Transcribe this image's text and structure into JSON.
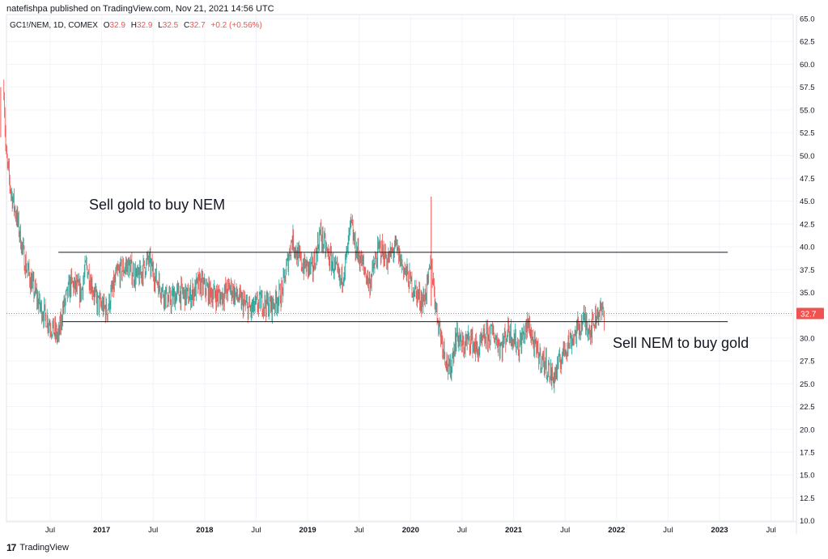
{
  "header": {
    "published": "natefishpa published on TradingView.com, Nov 21, 2021 14:56 UTC"
  },
  "legend": {
    "symbol": "GC1!/NEM, 1D, COMEX",
    "o_label": "O",
    "o_value": "32.9",
    "h_label": "H",
    "h_value": "32.9",
    "l_label": "L",
    "l_value": "32.5",
    "c_label": "C",
    "c_value": "32.7",
    "change": "+0.2 (+0.56%)"
  },
  "footer": {
    "brand": "TradingView",
    "logo": "17"
  },
  "annotations": {
    "upper": "Sell gold to buy NEM",
    "lower": "Sell NEM to buy gold"
  },
  "colors": {
    "up": "#26a69a",
    "down": "#ef5350",
    "last_price": "#ef5350",
    "grid": "#f0f3fa",
    "axis": "#e0e3eb"
  },
  "chart_data": {
    "type": "candlestick",
    "ylim": [
      8.9,
      65.0
    ],
    "y_ticks": [
      "65.0",
      "62.5",
      "60.0",
      "57.5",
      "55.0",
      "52.5",
      "50.0",
      "47.5",
      "45.0",
      "42.5",
      "40.0",
      "37.5",
      "35.0",
      "32.5",
      "30.0",
      "27.5",
      "25.0",
      "22.5",
      "20.0",
      "17.5",
      "15.0",
      "12.5",
      "10.0"
    ],
    "x_ticks": [
      "Jul",
      "2017",
      "Jul",
      "2018",
      "Jul",
      "2019",
      "Jul",
      "2020",
      "Jul",
      "2021",
      "Jul",
      "2022",
      "Jul",
      "2023",
      "Jul"
    ],
    "x_tick_dates": [
      2016.5,
      2017.0,
      2017.5,
      2018.0,
      2018.5,
      2019.0,
      2019.5,
      2020.0,
      2020.5,
      2021.0,
      2021.5,
      2022.0,
      2022.5,
      2023.0,
      2023.5
    ],
    "last_price": "32.7",
    "series_path": [
      [
        2016.05,
        57.5
      ],
      [
        2016.07,
        50.0
      ],
      [
        2016.12,
        46.0
      ],
      [
        2016.18,
        43.0
      ],
      [
        2016.25,
        38.5
      ],
      [
        2016.32,
        36.0
      ],
      [
        2016.4,
        33.5
      ],
      [
        2016.5,
        31.5
      ],
      [
        2016.58,
        30.0
      ],
      [
        2016.62,
        33.0
      ],
      [
        2016.7,
        36.0
      ],
      [
        2016.8,
        35.0
      ],
      [
        2016.85,
        38.0
      ],
      [
        2016.95,
        34.0
      ],
      [
        2017.05,
        33.0
      ],
      [
        2017.15,
        37.0
      ],
      [
        2017.25,
        38.0
      ],
      [
        2017.35,
        36.5
      ],
      [
        2017.45,
        38.5
      ],
      [
        2017.55,
        36.0
      ],
      [
        2017.65,
        34.0
      ],
      [
        2017.75,
        35.0
      ],
      [
        2017.85,
        34.5
      ],
      [
        2017.95,
        36.0
      ],
      [
        2018.05,
        35.0
      ],
      [
        2018.15,
        34.5
      ],
      [
        2018.25,
        35.5
      ],
      [
        2018.35,
        34.0
      ],
      [
        2018.45,
        33.0
      ],
      [
        2018.55,
        34.0
      ],
      [
        2018.65,
        33.5
      ],
      [
        2018.75,
        35.0
      ],
      [
        2018.8,
        38.0
      ],
      [
        2018.85,
        41.0
      ],
      [
        2018.9,
        39.0
      ],
      [
        2018.95,
        38.0
      ],
      [
        2019.05,
        37.5
      ],
      [
        2019.12,
        41.5
      ],
      [
        2019.2,
        39.0
      ],
      [
        2019.25,
        38.0
      ],
      [
        2019.32,
        36.0
      ],
      [
        2019.38,
        39.0
      ],
      [
        2019.42,
        42.5
      ],
      [
        2019.46,
        40.0
      ],
      [
        2019.5,
        39.0
      ],
      [
        2019.55,
        37.5
      ],
      [
        2019.6,
        36.0
      ],
      [
        2019.65,
        38.0
      ],
      [
        2019.7,
        40.0
      ],
      [
        2019.78,
        38.5
      ],
      [
        2019.85,
        40.0
      ],
      [
        2019.92,
        38.0
      ],
      [
        2019.98,
        36.5
      ],
      [
        2020.05,
        35.0
      ],
      [
        2020.12,
        34.0
      ],
      [
        2020.17,
        36.0
      ],
      [
        2020.2,
        38.5
      ],
      [
        2020.22,
        36.0
      ],
      [
        2020.25,
        33.0
      ],
      [
        2020.3,
        30.0
      ],
      [
        2020.35,
        27.5
      ],
      [
        2020.38,
        26.0
      ],
      [
        2020.42,
        29.0
      ],
      [
        2020.45,
        30.5
      ],
      [
        2020.5,
        29.0
      ],
      [
        2020.58,
        30.0
      ],
      [
        2020.65,
        28.5
      ],
      [
        2020.72,
        30.0
      ],
      [
        2020.8,
        30.5
      ],
      [
        2020.88,
        29.0
      ],
      [
        2020.95,
        31.0
      ],
      [
        2021.0,
        30.0
      ],
      [
        2021.05,
        29.0
      ],
      [
        2021.1,
        30.5
      ],
      [
        2021.15,
        31.5
      ],
      [
        2021.2,
        29.0
      ],
      [
        2021.25,
        28.0
      ],
      [
        2021.32,
        27.0
      ],
      [
        2021.38,
        25.5
      ],
      [
        2021.42,
        26.5
      ],
      [
        2021.5,
        29.0
      ],
      [
        2021.6,
        30.5
      ],
      [
        2021.68,
        32.0
      ],
      [
        2021.75,
        31.0
      ],
      [
        2021.82,
        33.0
      ],
      [
        2021.88,
        32.7
      ]
    ],
    "spikes": [
      {
        "x": 2020.2,
        "high": 45.5,
        "low": 33.5
      },
      {
        "x": 2016.02,
        "high": 57.5,
        "low": 52.0
      }
    ],
    "hlines": [
      {
        "value": 39.4,
        "x_from": 2016.58,
        "x_to": 2023.08
      },
      {
        "value": 31.8,
        "x_from": 2016.62,
        "x_to": 2023.08
      }
    ]
  }
}
